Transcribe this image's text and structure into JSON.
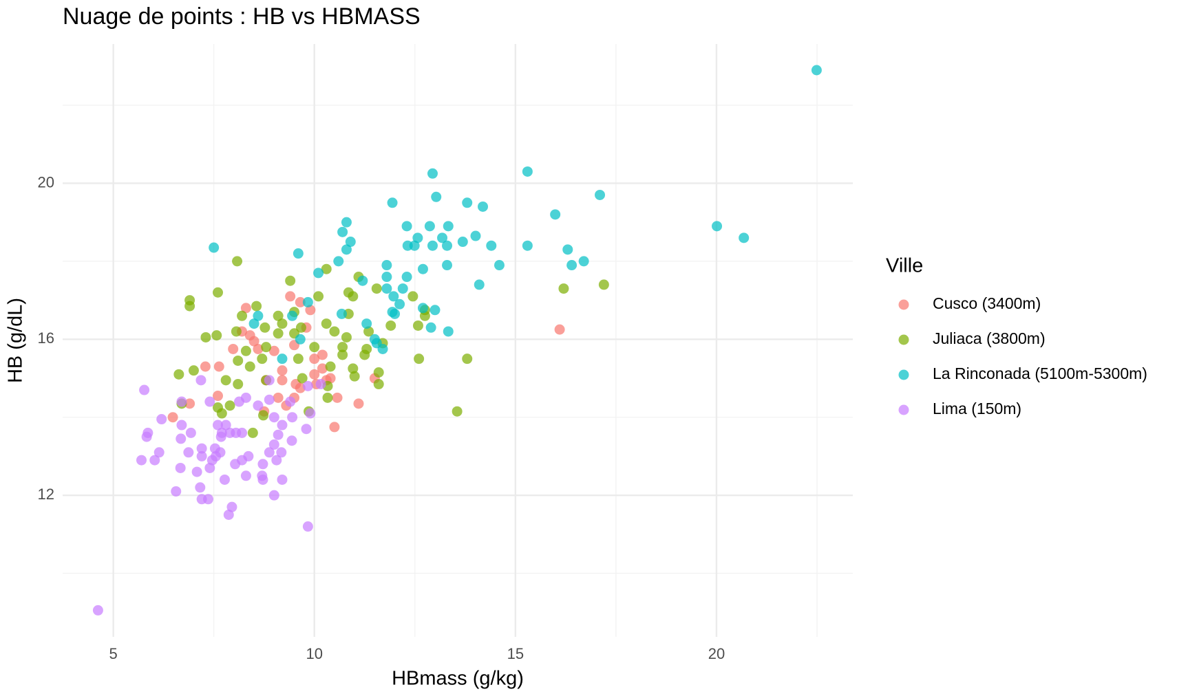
{
  "chart_data": {
    "type": "scatter",
    "title": "Nuage de points : HB vs HBMASS",
    "x_label": "HBmass (g/kg)",
    "y_label": "HB (g/dL)",
    "legend_title": "Ville",
    "legend_position": "right",
    "xlim": [
      3.74,
      23.39
    ],
    "ylim": [
      8.37,
      23.57
    ],
    "xticks": [
      5,
      10,
      15,
      20
    ],
    "yticks": [
      12,
      16,
      20
    ],
    "xminorticks": [
      7.5,
      12.5,
      17.5,
      22.5
    ],
    "yminorticks": [
      10,
      14,
      18,
      22
    ],
    "grid": true,
    "series": [
      {
        "name": "Cusco (3400m)",
        "color": "#F8766D",
        "x": [
          8.3,
          9.4,
          9.65,
          9.9,
          16.1,
          8.2,
          9.8,
          8.4,
          8.5,
          7.98,
          8.6,
          9.5,
          9.0,
          10.2,
          10.0,
          7.63,
          7.29,
          9.2,
          10.0,
          10.4,
          11.5,
          8.8,
          9.54,
          9.65,
          10.05,
          9.2,
          7.6,
          9.1,
          9.5,
          10.57,
          6.9,
          9.3,
          11.1,
          8.75,
          6.48,
          10.5,
          10.3,
          10.2
        ],
        "values": [
          16.8,
          17.1,
          16.95,
          16.75,
          16.25,
          16.2,
          16.3,
          16.1,
          15.95,
          15.75,
          15.75,
          15.85,
          15.7,
          15.6,
          15.5,
          15.3,
          15.3,
          15.2,
          15.1,
          15.0,
          15.0,
          14.95,
          14.85,
          14.75,
          14.85,
          14.95,
          14.55,
          14.5,
          14.5,
          14.5,
          14.35,
          14.3,
          14.35,
          14.15,
          14.0,
          13.75,
          14.95,
          15.25
        ]
      },
      {
        "name": "Juliaca (3800m)",
        "color": "#7CAE00",
        "x": [
          8.08,
          9.4,
          7.6,
          6.9,
          6.9,
          8.56,
          10.1,
          10.96,
          10.85,
          11.1,
          11.55,
          12.45,
          16.2,
          17.2,
          10.3,
          8.2,
          9.1,
          9.5,
          10.85,
          12.75,
          12.75,
          9.2,
          10.3,
          7.3,
          7.57,
          8.06,
          8.77,
          9.67,
          10.5,
          12.58,
          11.9,
          9.1,
          9.5,
          10.8,
          11.35,
          8.3,
          8.8,
          10.0,
          10.7,
          11.3,
          11.7,
          8.1,
          8.7,
          9.6,
          10.7,
          11.25,
          12.6,
          13.8,
          6.63,
          7.0,
          8.4,
          7.8,
          8.8,
          9.7,
          10.4,
          10.96,
          11.0,
          11.6,
          11.6,
          10.33,
          8.1,
          6.7,
          7.6,
          7.9,
          7.7,
          8.73,
          9.86,
          13.55,
          8.47,
          10.33
        ],
        "values": [
          18.0,
          17.5,
          17.2,
          17.0,
          16.85,
          16.85,
          17.1,
          17.1,
          17.2,
          17.6,
          17.3,
          17.1,
          17.3,
          17.4,
          17.8,
          16.6,
          16.6,
          16.7,
          16.65,
          16.75,
          16.6,
          16.4,
          16.4,
          16.05,
          16.1,
          16.2,
          16.3,
          16.3,
          16.2,
          16.35,
          16.35,
          16.15,
          16.15,
          16.05,
          16.2,
          15.7,
          15.8,
          15.8,
          15.8,
          15.75,
          15.9,
          15.45,
          15.5,
          15.5,
          15.6,
          15.6,
          15.5,
          15.5,
          15.1,
          15.2,
          15.3,
          14.95,
          14.95,
          15.0,
          15.3,
          15.25,
          15.05,
          15.15,
          14.85,
          14.8,
          14.85,
          14.35,
          14.25,
          14.3,
          14.1,
          14.05,
          14.15,
          14.15,
          13.6,
          14.5
        ]
      },
      {
        "name": "La Rinconada (5100m-5300m)",
        "color": "#00BFC4",
        "x": [
          22.49,
          15.3,
          12.94,
          17.1,
          13.03,
          11.94,
          13.8,
          14.19,
          15.99,
          20.01,
          12.3,
          12.87,
          13.33,
          20.68,
          10.8,
          10.7,
          10.9,
          12.57,
          13.18,
          14.01,
          13.69,
          12.32,
          12.49,
          12.94,
          13.3,
          14.4,
          15.3,
          16.3,
          10.8,
          7.5,
          9.6,
          10.6,
          11.8,
          13.3,
          14.6,
          16.4,
          16.7,
          10.1,
          11.8,
          12.3,
          11.2,
          12.7,
          14.1,
          11.8,
          12.2,
          11.97,
          12.12,
          11.94,
          12.7,
          13.0,
          12.0,
          10.68,
          11.3,
          9.84,
          8.6,
          8.5,
          9.45,
          12.9,
          13.33,
          9.65,
          11.5,
          11.55,
          11.7,
          9.2
        ],
        "values": [
          22.9,
          20.3,
          20.25,
          19.7,
          19.65,
          19.5,
          19.5,
          19.4,
          19.2,
          18.9,
          18.9,
          18.9,
          18.9,
          18.6,
          19.0,
          18.75,
          18.5,
          18.6,
          18.6,
          18.65,
          18.5,
          18.4,
          18.4,
          18.4,
          18.4,
          18.4,
          18.4,
          18.3,
          18.3,
          18.35,
          18.2,
          18.0,
          17.9,
          17.9,
          17.9,
          17.9,
          18.0,
          17.7,
          17.6,
          17.6,
          17.5,
          17.8,
          17.4,
          17.3,
          17.3,
          17.1,
          16.9,
          16.7,
          16.8,
          16.75,
          16.65,
          16.65,
          16.4,
          16.95,
          16.6,
          16.4,
          16.6,
          16.3,
          16.2,
          16.0,
          16.0,
          15.9,
          15.75,
          15.5
        ]
      },
      {
        "name": "Lima (150m)",
        "color": "#C77CFF",
        "x": [
          4.62,
          5.77,
          7.18,
          10.16,
          9.84,
          6.7,
          7.4,
          8.13,
          8.3,
          8.6,
          8.88,
          8.88,
          9.4,
          6.2,
          6.7,
          7.6,
          7.8,
          9.0,
          9.45,
          9.9,
          5.86,
          6.93,
          7.7,
          7.9,
          8.05,
          8.2,
          9.2,
          9.8,
          5.83,
          6.68,
          7.68,
          9.1,
          9.44,
          6.14,
          6.87,
          7.2,
          7.53,
          7.66,
          9.0,
          8.88,
          9.18,
          5.7,
          6.03,
          7.2,
          7.46,
          7.55,
          8.36,
          8.2,
          9.06,
          6.67,
          7.4,
          8.03,
          8.72,
          7.08,
          7.77,
          8.3,
          8.7,
          8.72,
          9.2,
          6.56,
          7.16,
          7.2,
          7.36,
          9.0,
          7.95,
          7.87,
          9.84
        ],
        "values": [
          9.05,
          14.7,
          14.95,
          14.85,
          14.8,
          14.4,
          14.4,
          14.4,
          14.5,
          14.3,
          14.95,
          14.45,
          14.4,
          13.95,
          13.8,
          13.8,
          13.8,
          14.0,
          14.0,
          14.1,
          13.6,
          13.6,
          13.6,
          13.6,
          13.6,
          13.6,
          13.8,
          13.7,
          13.5,
          13.45,
          13.5,
          13.55,
          13.4,
          13.1,
          13.1,
          13.2,
          13.2,
          13.1,
          13.3,
          13.1,
          13.1,
          12.9,
          12.9,
          13.0,
          12.9,
          13.0,
          13.0,
          12.9,
          12.9,
          12.7,
          12.7,
          12.8,
          12.8,
          12.6,
          12.4,
          12.5,
          12.5,
          12.4,
          12.4,
          12.1,
          12.2,
          11.9,
          11.9,
          12.0,
          11.7,
          11.5,
          11.2
        ]
      }
    ]
  }
}
